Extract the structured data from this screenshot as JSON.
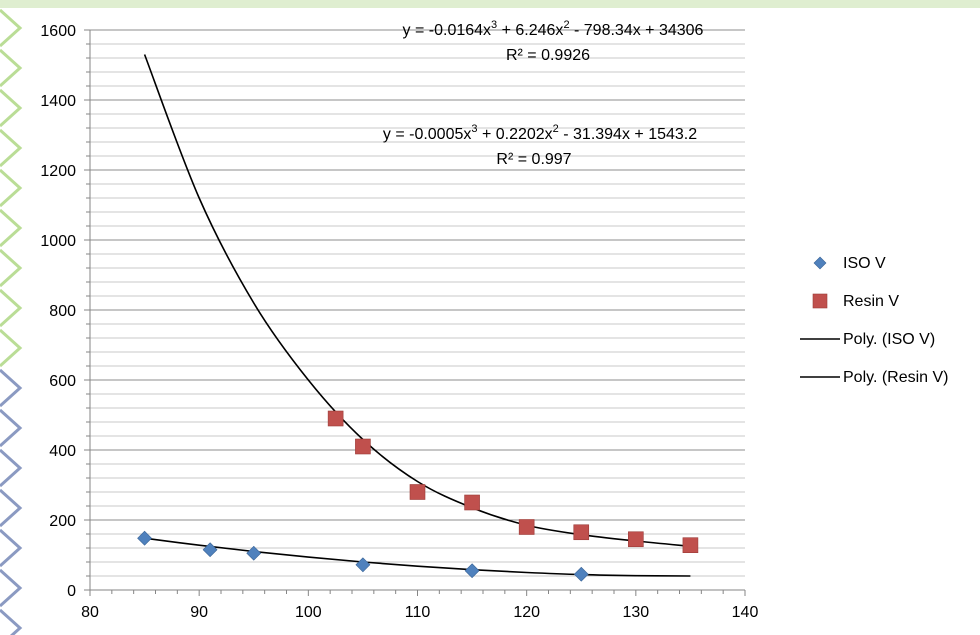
{
  "chart_data": {
    "type": "scatter",
    "title": "",
    "xlabel": "",
    "ylabel": "",
    "xlim": [
      80,
      140
    ],
    "ylim": [
      0,
      1600
    ],
    "x_ticks": [
      80,
      90,
      100,
      110,
      120,
      130,
      140
    ],
    "y_ticks": [
      0,
      200,
      400,
      600,
      800,
      1000,
      1200,
      1400,
      1600
    ],
    "x_tick_labels": [
      "80",
      "90",
      "100",
      "110",
      "120",
      "130",
      "140"
    ],
    "y_tick_labels": [
      "0",
      "200",
      "400",
      "600",
      "800",
      "1000",
      "1200",
      "1400",
      "1600"
    ],
    "y_minor_step": 40,
    "grid": true,
    "legend_position": "right",
    "series": [
      {
        "name": "ISO V",
        "marker": "diamond",
        "color": "#4f81bd",
        "points": [
          [
            85,
            148
          ],
          [
            91,
            115
          ],
          [
            95,
            105
          ],
          [
            105,
            72
          ],
          [
            115,
            55
          ],
          [
            125,
            45
          ]
        ]
      },
      {
        "name": "Resin V",
        "marker": "square",
        "color": "#c0504d",
        "points": [
          [
            102.5,
            490
          ],
          [
            105,
            410
          ],
          [
            110,
            280
          ],
          [
            115,
            250
          ],
          [
            120,
            180
          ],
          [
            125,
            165
          ],
          [
            130,
            145
          ],
          [
            135,
            128
          ]
        ]
      }
    ],
    "trendlines": [
      {
        "name": "Poly. (ISO V)",
        "of_series": "ISO V",
        "color": "#000000",
        "x_range": [
          85,
          135
        ],
        "curve": [
          [
            85,
            148
          ],
          [
            90,
            128
          ],
          [
            95,
            110
          ],
          [
            100,
            94
          ],
          [
            105,
            80
          ],
          [
            110,
            68
          ],
          [
            115,
            58
          ],
          [
            120,
            50
          ],
          [
            125,
            44
          ],
          [
            130,
            41
          ],
          [
            135,
            40
          ]
        ],
        "equation": {
          "text": "y = -0.0005x",
          "exp1": "3",
          "mid": " + 0.2202x",
          "exp2": "2",
          "tail": " - 31.394x + 1543.2"
        },
        "r2_label": "R² = 0.997"
      },
      {
        "name": "Poly. (Resin V)",
        "of_series": "Resin V",
        "color": "#000000",
        "x_range": [
          85,
          135
        ],
        "curve": [
          [
            85,
            1530
          ],
          [
            90,
            1120
          ],
          [
            95,
            820
          ],
          [
            100,
            600
          ],
          [
            105,
            430
          ],
          [
            110,
            310
          ],
          [
            115,
            235
          ],
          [
            120,
            185
          ],
          [
            125,
            158
          ],
          [
            130,
            140
          ],
          [
            135,
            125
          ]
        ],
        "equation": {
          "text": "y = -0.0164x",
          "exp1": "3",
          "mid": " + 6.246x",
          "exp2": "2",
          "tail": " - 798.34x + 34306"
        },
        "r2_label": "R² = 0.9926"
      }
    ],
    "legend": [
      "ISO V",
      "Resin V",
      "Poly. (ISO V)",
      "Poly. (Resin V)"
    ]
  }
}
